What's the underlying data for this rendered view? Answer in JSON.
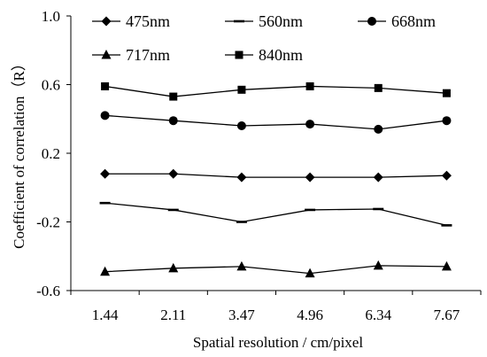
{
  "chart_data": {
    "type": "line",
    "xlabel": "Spatial resolution / cm/pixel",
    "ylabel": "Coefficient of correlation（R）",
    "categories": [
      "1.44",
      "2.11",
      "3.47",
      "4.96",
      "6.34",
      "7.67"
    ],
    "ylim": [
      -0.6,
      1.0
    ],
    "yticks": [
      "1.0",
      "0.6",
      "0.2",
      "-0.2",
      "-0.6"
    ],
    "legend_position": "top",
    "grid": false,
    "series": [
      {
        "name": "475nm",
        "marker": "diamond",
        "values": [
          0.08,
          0.08,
          0.06,
          0.06,
          0.06,
          0.07
        ]
      },
      {
        "name": "560nm",
        "marker": "dash",
        "values": [
          -0.09,
          -0.13,
          -0.2,
          -0.13,
          -0.125,
          -0.22
        ]
      },
      {
        "name": "668nm",
        "marker": "circle",
        "values": [
          0.42,
          0.39,
          0.36,
          0.37,
          0.34,
          0.39
        ]
      },
      {
        "name": "717nm",
        "marker": "triangle",
        "values": [
          -0.49,
          -0.47,
          -0.46,
          -0.5,
          -0.455,
          -0.46
        ]
      },
      {
        "name": "840nm",
        "marker": "square",
        "values": [
          0.59,
          0.53,
          0.57,
          0.59,
          0.58,
          0.55
        ]
      }
    ]
  }
}
